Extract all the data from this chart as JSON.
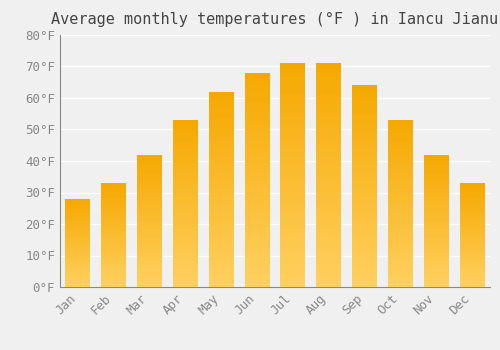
{
  "title": "Average monthly temperatures (°F ) in Iancu Jianu",
  "months": [
    "Jan",
    "Feb",
    "Mar",
    "Apr",
    "May",
    "Jun",
    "Jul",
    "Aug",
    "Sep",
    "Oct",
    "Nov",
    "Dec"
  ],
  "values": [
    28,
    33,
    42,
    53,
    62,
    68,
    71,
    71,
    64,
    53,
    42,
    33
  ],
  "bar_color_top": "#F5A800",
  "bar_color_bottom": "#FFD060",
  "background_color": "#F0F0F0",
  "grid_color": "#FFFFFF",
  "tick_color": "#888888",
  "title_color": "#444444",
  "ylim": [
    0,
    80
  ],
  "yticks": [
    0,
    10,
    20,
    30,
    40,
    50,
    60,
    70,
    80
  ],
  "ytick_labels": [
    "0°F",
    "10°F",
    "20°F",
    "30°F",
    "40°F",
    "50°F",
    "60°F",
    "70°F",
    "80°F"
  ],
  "title_fontsize": 11,
  "tick_fontsize": 9,
  "font_family": "monospace"
}
